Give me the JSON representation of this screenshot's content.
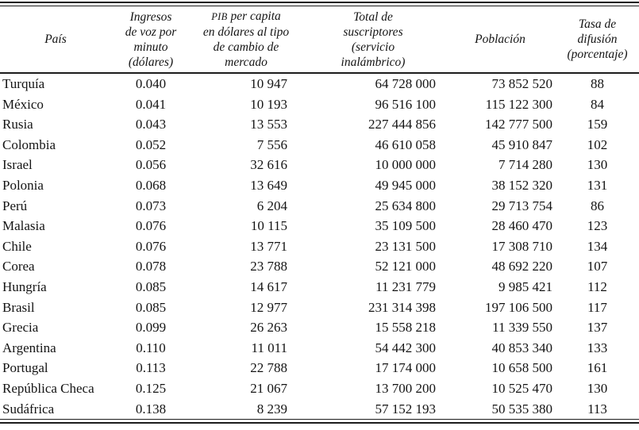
{
  "table": {
    "columns": [
      {
        "key": "pais",
        "label": "País"
      },
      {
        "key": "ingresos",
        "label": "Ingresos\nde voz por\nminuto\n(dólares)"
      },
      {
        "key": "pib",
        "label": "PIB per capita\nen dólares al tipo\nde cambio de\nmercado"
      },
      {
        "key": "suscriptores",
        "label": "Total de\nsuscriptores\n(servicio\ninalámbrico)"
      },
      {
        "key": "poblacion",
        "label": "Población"
      },
      {
        "key": "tasa",
        "label": "Tasa de\ndifusión\n(porcentaje)"
      }
    ],
    "rows": [
      {
        "pais": "Turquía",
        "ingresos": "0.040",
        "pib": "10 947",
        "suscriptores": "64 728 000",
        "poblacion": "73 852 520",
        "tasa": "88"
      },
      {
        "pais": "México",
        "ingresos": "0.041",
        "pib": "10 193",
        "suscriptores": "96 516 100",
        "poblacion": "115 122 300",
        "tasa": "84"
      },
      {
        "pais": "Rusia",
        "ingresos": "0.043",
        "pib": "13 553",
        "suscriptores": "227 444 856",
        "poblacion": "142 777 500",
        "tasa": "159"
      },
      {
        "pais": "Colombia",
        "ingresos": "0.052",
        "pib": "7 556",
        "suscriptores": "46 610 058",
        "poblacion": "45 910 847",
        "tasa": "102"
      },
      {
        "pais": "Israel",
        "ingresos": "0.056",
        "pib": "32 616",
        "suscriptores": "10 000 000",
        "poblacion": "7 714 280",
        "tasa": "130"
      },
      {
        "pais": "Polonia",
        "ingresos": "0.068",
        "pib": "13 649",
        "suscriptores": "49 945 000",
        "poblacion": "38 152 320",
        "tasa": "131"
      },
      {
        "pais": "Perú",
        "ingresos": "0.073",
        "pib": "6 204",
        "suscriptores": "25 634 800",
        "poblacion": "29 713 754",
        "tasa": "86"
      },
      {
        "pais": "Malasia",
        "ingresos": "0.076",
        "pib": "10 115",
        "suscriptores": "35 109 500",
        "poblacion": "28 460 470",
        "tasa": "123"
      },
      {
        "pais": "Chile",
        "ingresos": "0.076",
        "pib": "13 771",
        "suscriptores": "23 131 500",
        "poblacion": "17 308 710",
        "tasa": "134"
      },
      {
        "pais": "Corea",
        "ingresos": "0.078",
        "pib": "23 788",
        "suscriptores": "52 121 000",
        "poblacion": "48 692 220",
        "tasa": "107"
      },
      {
        "pais": "Hungría",
        "ingresos": "0.085",
        "pib": "14 617",
        "suscriptores": "11 231 779",
        "poblacion": "9 985 421",
        "tasa": "112"
      },
      {
        "pais": "Brasil",
        "ingresos": "0.085",
        "pib": "12 977",
        "suscriptores": "231 314 398",
        "poblacion": "197 106 500",
        "tasa": "117"
      },
      {
        "pais": "Grecia",
        "ingresos": "0.099",
        "pib": "26 263",
        "suscriptores": "15 558 218",
        "poblacion": "11 339 550",
        "tasa": "137"
      },
      {
        "pais": "Argentina",
        "ingresos": "0.110",
        "pib": "11 011",
        "suscriptores": "54 442 300",
        "poblacion": "40 853 340",
        "tasa": "133"
      },
      {
        "pais": "Portugal",
        "ingresos": "0.113",
        "pib": "22 788",
        "suscriptores": "17 174 000",
        "poblacion": "10 658 500",
        "tasa": "161"
      },
      {
        "pais": "República Checa",
        "ingresos": "0.125",
        "pib": "21 067",
        "suscriptores": "13 700 200",
        "poblacion": "10 525 470",
        "tasa": "130"
      },
      {
        "pais": "Sudáfrica",
        "ingresos": "0.138",
        "pib": "8 239",
        "suscriptores": "57 152 193",
        "poblacion": "50 535 380",
        "tasa": "113"
      }
    ]
  }
}
